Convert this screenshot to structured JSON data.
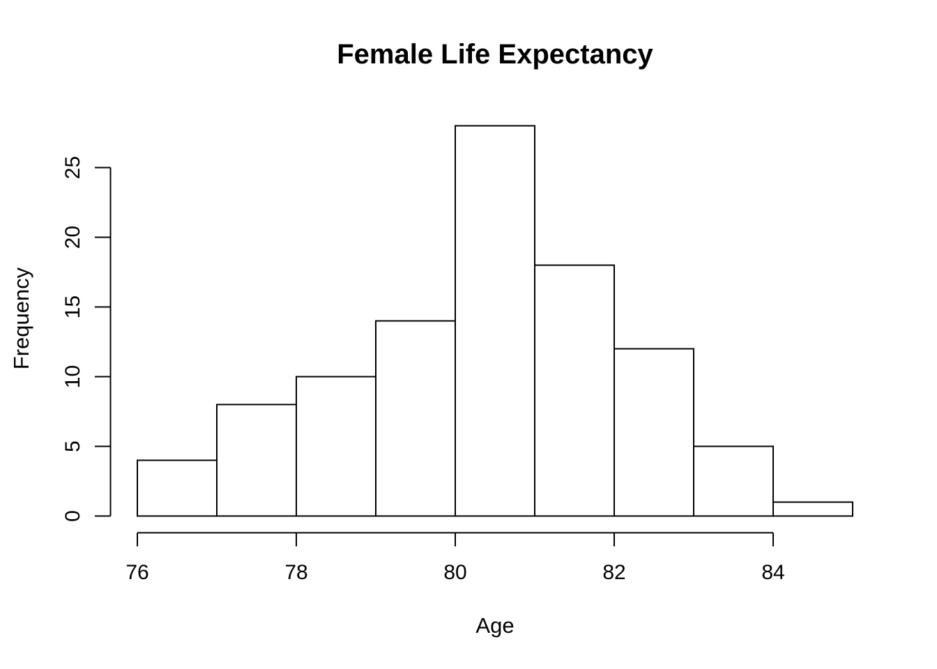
{
  "page": {
    "background": "#ffffff"
  },
  "chart_data": {
    "type": "bar",
    "subtype": "histogram",
    "title": "Female Life Expectancy",
    "xlabel": "Age",
    "ylabel": "Frequency",
    "breaks": [
      76,
      77,
      78,
      79,
      80,
      81,
      82,
      83,
      84,
      85
    ],
    "counts": [
      4,
      8,
      10,
      14,
      28,
      18,
      12,
      5,
      1
    ],
    "bin_labels": [
      "76-77",
      "77-78",
      "78-79",
      "79-80",
      "80-81",
      "81-82",
      "82-83",
      "83-84",
      "84-85"
    ],
    "x_ticks": [
      76,
      78,
      80,
      82,
      84
    ],
    "y_ticks": [
      0,
      5,
      10,
      15,
      20,
      25
    ],
    "xlim": [
      76,
      85
    ],
    "ylim": [
      0,
      28
    ],
    "grid": false,
    "legend": "none",
    "colors": {
      "bar_fill": "#ffffff",
      "bar_border": "#000000",
      "axis": "#000000",
      "text": "#000000",
      "background": "#ffffff"
    }
  }
}
